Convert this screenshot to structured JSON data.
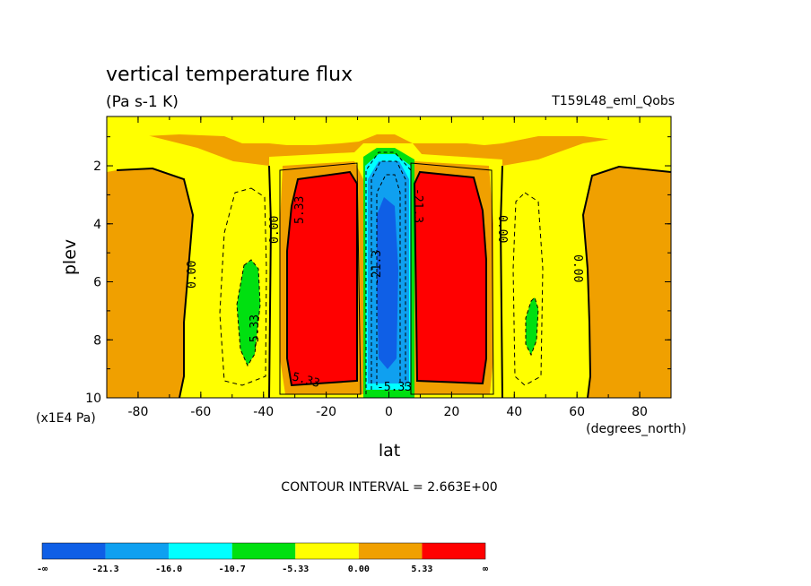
{
  "chart_data": {
    "type": "heatmap",
    "title": "vertical temperature flux",
    "subtitle": "(Pa s-1 K)",
    "run_label": "T159L48_eml_Qobs",
    "xlabel": "lat",
    "xunits": "(degrees_north)",
    "ylabel": "plev",
    "yunits": "(x1E4 Pa)",
    "xlim": [
      -90,
      90
    ],
    "ylim": [
      10,
      0.3
    ],
    "xticks": [
      "-80",
      "-60",
      "-40",
      "-20",
      "0",
      "20",
      "40",
      "60",
      "80"
    ],
    "yticks": [
      "2",
      "4",
      "6",
      "8",
      "10"
    ],
    "contour_interval_text": "CONTOUR INTERVAL = 2.663E+00",
    "contour_labels": [
      "0.00",
      "0.00",
      "0.00",
      "0.00",
      "5.33",
      "5.33",
      "-5.33",
      "-5.33",
      "-21.3",
      "-21.3"
    ],
    "colorbar": {
      "levels": [
        "-∞",
        "-21.3",
        "-16.0",
        "-10.7",
        "-5.33",
        "0.00",
        "5.33",
        "∞"
      ],
      "colors": [
        "#0f5fe6",
        "#0fa0f0",
        "#00ffff",
        "#00e010",
        "#ffff00",
        "#f0a000",
        "#ff0000"
      ]
    }
  }
}
